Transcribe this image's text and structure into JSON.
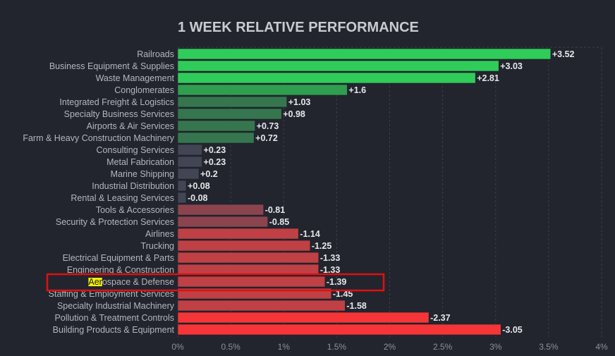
{
  "chart_data": {
    "type": "bar",
    "orientation": "horizontal",
    "title": "1 WEEK RELATIVE PERFORMANCE",
    "categories": [
      "Railroads",
      "Business Equipment & Supplies",
      "Waste Management",
      "Conglomerates",
      "Integrated Freight & Logistics",
      "Specialty Business Services",
      "Airports & Air Services",
      "Farm & Heavy Construction Machinery",
      "Consulting Services",
      "Metal Fabrication",
      "Marine Shipping",
      "Industrial Distribution",
      "Rental & Leasing Services",
      "Tools & Accessories",
      "Security & Protection Services",
      "Airlines",
      "Trucking",
      "Electrical Equipment & Parts",
      "Engineering & Construction",
      "Aerospace & Defense",
      "Staffing & Employment Services",
      "Specialty Industrial Machinery",
      "Pollution & Treatment Controls",
      "Building Products & Equipment"
    ],
    "values": [
      3.52,
      3.03,
      2.81,
      1.6,
      1.03,
      0.98,
      0.73,
      0.72,
      0.23,
      0.23,
      0.2,
      0.08,
      -0.08,
      -0.81,
      -0.85,
      -1.14,
      -1.25,
      -1.33,
      -1.33,
      -1.39,
      -1.45,
      -1.58,
      -2.37,
      -3.05
    ],
    "value_labels": [
      "+3.52",
      "+3.03",
      "+2.81",
      "+1.6",
      "+1.03",
      "+0.98",
      "+0.73",
      "+0.72",
      "+0.23",
      "+0.23",
      "+0.2",
      "+0.08",
      "-0.08",
      "-0.81",
      "-0.85",
      "-1.14",
      "-1.25",
      "-1.33",
      "-1.33",
      "-1.39",
      "-1.45",
      "-1.58",
      "-2.37",
      "-3.05"
    ],
    "x_ticks": [
      "0%",
      "0.5%",
      "1%",
      "1.5%",
      "2%",
      "2.5%",
      "3%",
      "3.5%",
      "4%"
    ],
    "xlim": [
      0,
      4
    ],
    "bar_length": "absolute value",
    "grid": true,
    "highlighted_category": "Aerospace & Defense",
    "highlight_text": "Aer",
    "colors": {
      "background": "#22252e",
      "positive_strong": "#30cc5a",
      "positive_mid": "#2f9e4f",
      "positive_weak": "#35764e",
      "neutral": "#414554",
      "negative_weak": "#8b444e",
      "negative_mid": "#bf4045",
      "negative_strong": "#f63538",
      "highlight_box": "#e01010",
      "text_highlight": "#f5f000"
    }
  }
}
